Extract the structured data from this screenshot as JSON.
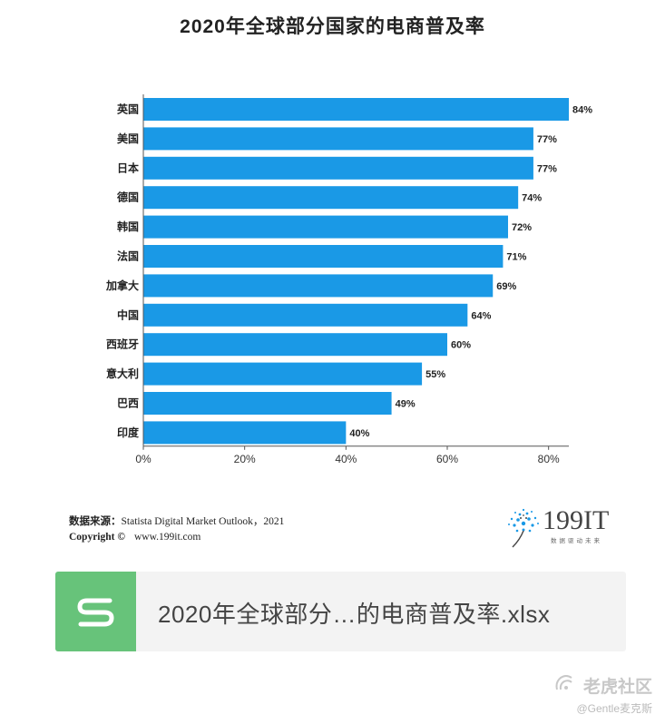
{
  "chart_data": {
    "type": "bar",
    "orientation": "horizontal",
    "title": "2020年全球部分国家的电商普及率",
    "categories": [
      "英国",
      "美国",
      "日本",
      "德国",
      "韩国",
      "法国",
      "加拿大",
      "中国",
      "西班牙",
      "意大利",
      "巴西",
      "印度"
    ],
    "values": [
      84,
      77,
      77,
      74,
      72,
      71,
      69,
      64,
      60,
      55,
      49,
      40
    ],
    "value_labels": [
      "84%",
      "77%",
      "77%",
      "74%",
      "72%",
      "71%",
      "69%",
      "64%",
      "60%",
      "55%",
      "49%",
      "40%"
    ],
    "xlim": [
      0,
      84
    ],
    "xticks": [
      0,
      20,
      40,
      60,
      80
    ],
    "xtick_labels": [
      "0%",
      "20%",
      "40%",
      "60%",
      "80%"
    ],
    "bar_color": "#1a99e6",
    "grid": false
  },
  "footer": {
    "source_label": "数据来源：",
    "source_text": "Statista Digital Market Outlook，2021",
    "copyright_label": "Copyright ©",
    "copyright_url": "www.199it.com",
    "logo_text": "199IT",
    "logo_sub": "数据驱动未来"
  },
  "file_card": {
    "icon": "s-file-icon",
    "name": "2020年全球部分…的电商普及率.xlsx",
    "accent": "#67c37a"
  },
  "watermark": {
    "brand": "老虎社区",
    "user": "@Gentle麦克斯"
  }
}
